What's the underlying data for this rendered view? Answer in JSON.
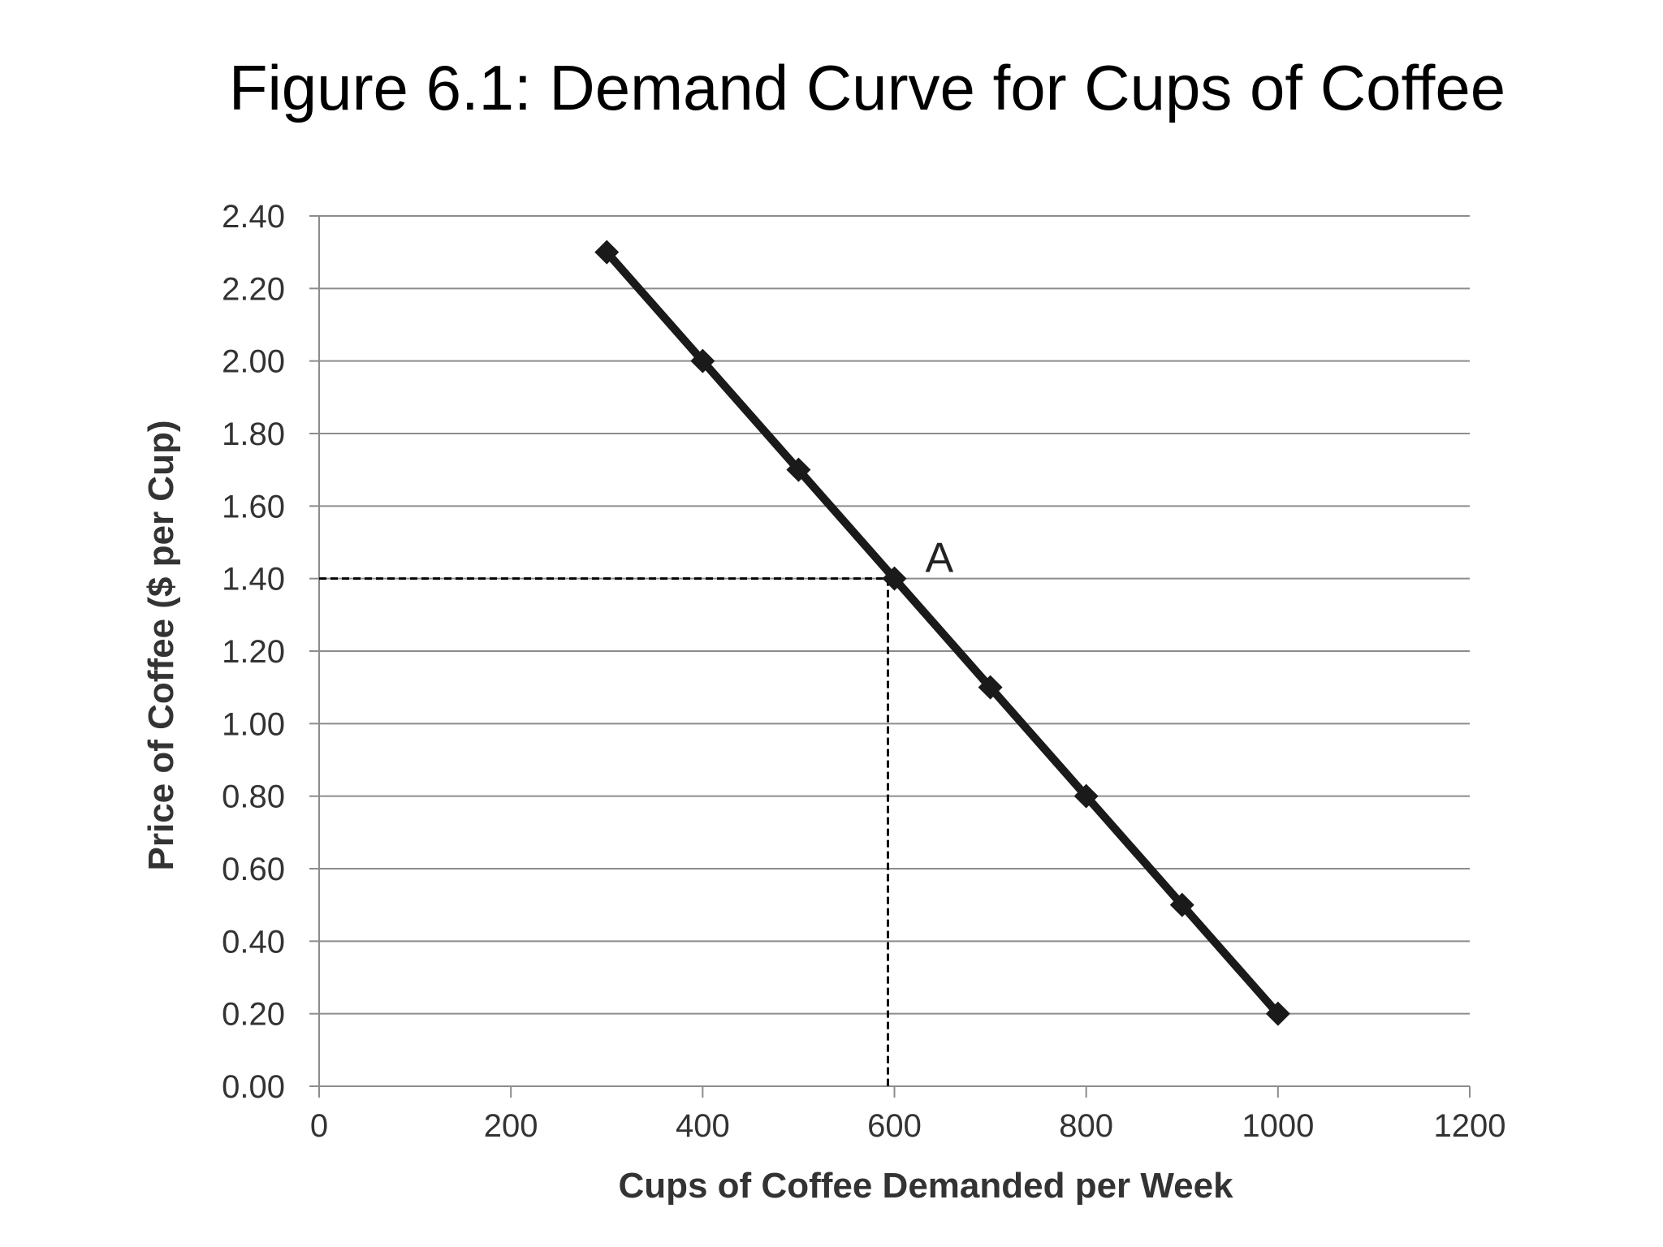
{
  "chart_data": {
    "type": "line",
    "title": "Figure 6.1: Demand Curve for Cups of Coffee",
    "xlabel": "Cups of Coffee Demanded per Week",
    "ylabel": "Price of Coffee ($ per Cup)",
    "xlim": [
      0,
      1200
    ],
    "ylim": [
      0,
      2.4
    ],
    "x_ticks": [
      0,
      200,
      400,
      600,
      800,
      1000,
      1200
    ],
    "y_ticks": [
      0,
      0.2,
      0.4,
      0.6,
      0.8,
      1.0,
      1.2,
      1.4,
      1.6,
      1.8,
      2.0,
      2.2,
      2.4
    ],
    "y_tick_labels": [
      "0.00",
      "0.20",
      "0.40",
      "0.60",
      "0.80",
      "1.00",
      "1.20",
      "1.40",
      "1.60",
      "1.80",
      "2.00",
      "2.20",
      "2.40"
    ],
    "x_tick_labels": [
      "0",
      "200",
      "400",
      "600",
      "800",
      "1000",
      "1200"
    ],
    "grid": "horizontal",
    "series": [
      {
        "name": "Demand",
        "x": [
          300,
          400,
          500,
          600,
          700,
          800,
          900,
          1000
        ],
        "y": [
          2.3,
          2.0,
          1.7,
          1.4,
          1.1,
          0.8,
          0.5,
          0.2
        ],
        "color": "#1a1a1a",
        "marker": "diamond"
      }
    ],
    "annotations": [
      {
        "label": "A",
        "x": 600,
        "y": 1.4,
        "guide_lines": "dashed"
      }
    ]
  },
  "colors": {
    "grid": "#8c8c8c",
    "axis": "#8c8c8c",
    "line": "#1a1a1a",
    "dash": "#000000"
  }
}
